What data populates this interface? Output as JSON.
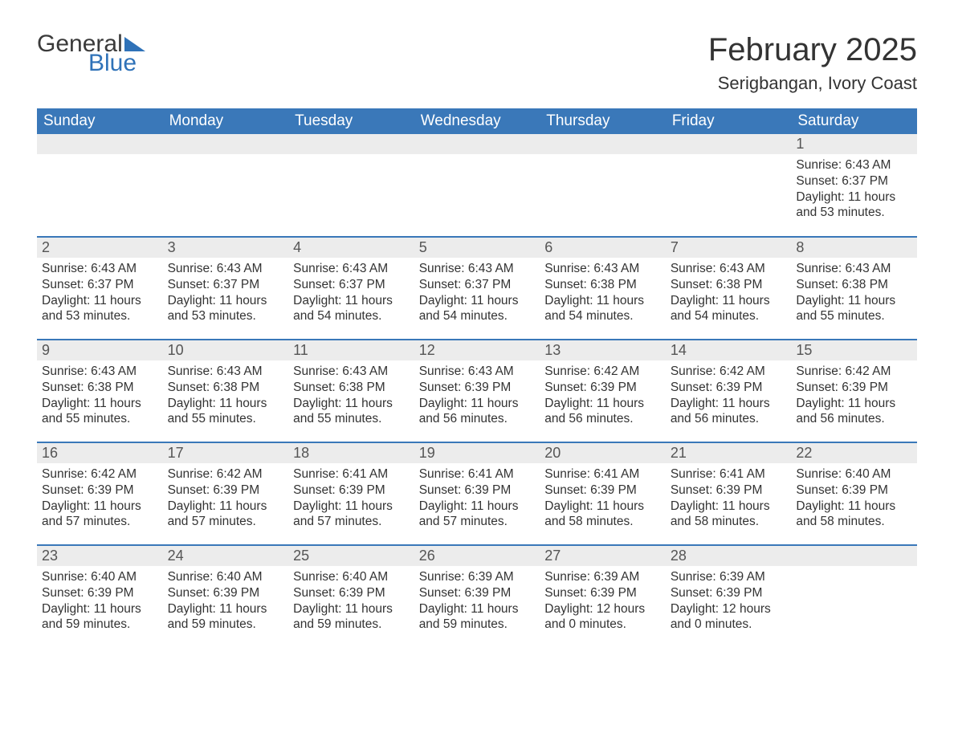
{
  "brand": {
    "general": "General",
    "blue": "Blue"
  },
  "title": "February 2025",
  "location": "Serigbangan, Ivory Coast",
  "colors": {
    "header_bg": "#3a78b9",
    "header_text": "#ffffff",
    "daynum_bg": "#ececec",
    "row_border": "#3a78b9",
    "brand_blue": "#2f72b8",
    "text": "#333333",
    "background": "#ffffff"
  },
  "layout": {
    "start_weekday": 0,
    "first_day_column": 6,
    "num_days": 28,
    "columns": 7
  },
  "weekdays": [
    "Sunday",
    "Monday",
    "Tuesday",
    "Wednesday",
    "Thursday",
    "Friday",
    "Saturday"
  ],
  "days": [
    {
      "n": 1,
      "sunrise": "6:43 AM",
      "sunset": "6:37 PM",
      "daylight": "11 hours and 53 minutes."
    },
    {
      "n": 2,
      "sunrise": "6:43 AM",
      "sunset": "6:37 PM",
      "daylight": "11 hours and 53 minutes."
    },
    {
      "n": 3,
      "sunrise": "6:43 AM",
      "sunset": "6:37 PM",
      "daylight": "11 hours and 53 minutes."
    },
    {
      "n": 4,
      "sunrise": "6:43 AM",
      "sunset": "6:37 PM",
      "daylight": "11 hours and 54 minutes."
    },
    {
      "n": 5,
      "sunrise": "6:43 AM",
      "sunset": "6:37 PM",
      "daylight": "11 hours and 54 minutes."
    },
    {
      "n": 6,
      "sunrise": "6:43 AM",
      "sunset": "6:38 PM",
      "daylight": "11 hours and 54 minutes."
    },
    {
      "n": 7,
      "sunrise": "6:43 AM",
      "sunset": "6:38 PM",
      "daylight": "11 hours and 54 minutes."
    },
    {
      "n": 8,
      "sunrise": "6:43 AM",
      "sunset": "6:38 PM",
      "daylight": "11 hours and 55 minutes."
    },
    {
      "n": 9,
      "sunrise": "6:43 AM",
      "sunset": "6:38 PM",
      "daylight": "11 hours and 55 minutes."
    },
    {
      "n": 10,
      "sunrise": "6:43 AM",
      "sunset": "6:38 PM",
      "daylight": "11 hours and 55 minutes."
    },
    {
      "n": 11,
      "sunrise": "6:43 AM",
      "sunset": "6:38 PM",
      "daylight": "11 hours and 55 minutes."
    },
    {
      "n": 12,
      "sunrise": "6:43 AM",
      "sunset": "6:39 PM",
      "daylight": "11 hours and 56 minutes."
    },
    {
      "n": 13,
      "sunrise": "6:42 AM",
      "sunset": "6:39 PM",
      "daylight": "11 hours and 56 minutes."
    },
    {
      "n": 14,
      "sunrise": "6:42 AM",
      "sunset": "6:39 PM",
      "daylight": "11 hours and 56 minutes."
    },
    {
      "n": 15,
      "sunrise": "6:42 AM",
      "sunset": "6:39 PM",
      "daylight": "11 hours and 56 minutes."
    },
    {
      "n": 16,
      "sunrise": "6:42 AM",
      "sunset": "6:39 PM",
      "daylight": "11 hours and 57 minutes."
    },
    {
      "n": 17,
      "sunrise": "6:42 AM",
      "sunset": "6:39 PM",
      "daylight": "11 hours and 57 minutes."
    },
    {
      "n": 18,
      "sunrise": "6:41 AM",
      "sunset": "6:39 PM",
      "daylight": "11 hours and 57 minutes."
    },
    {
      "n": 19,
      "sunrise": "6:41 AM",
      "sunset": "6:39 PM",
      "daylight": "11 hours and 57 minutes."
    },
    {
      "n": 20,
      "sunrise": "6:41 AM",
      "sunset": "6:39 PM",
      "daylight": "11 hours and 58 minutes."
    },
    {
      "n": 21,
      "sunrise": "6:41 AM",
      "sunset": "6:39 PM",
      "daylight": "11 hours and 58 minutes."
    },
    {
      "n": 22,
      "sunrise": "6:40 AM",
      "sunset": "6:39 PM",
      "daylight": "11 hours and 58 minutes."
    },
    {
      "n": 23,
      "sunrise": "6:40 AM",
      "sunset": "6:39 PM",
      "daylight": "11 hours and 59 minutes."
    },
    {
      "n": 24,
      "sunrise": "6:40 AM",
      "sunset": "6:39 PM",
      "daylight": "11 hours and 59 minutes."
    },
    {
      "n": 25,
      "sunrise": "6:40 AM",
      "sunset": "6:39 PM",
      "daylight": "11 hours and 59 minutes."
    },
    {
      "n": 26,
      "sunrise": "6:39 AM",
      "sunset": "6:39 PM",
      "daylight": "11 hours and 59 minutes."
    },
    {
      "n": 27,
      "sunrise": "6:39 AM",
      "sunset": "6:39 PM",
      "daylight": "12 hours and 0 minutes."
    },
    {
      "n": 28,
      "sunrise": "6:39 AM",
      "sunset": "6:39 PM",
      "daylight": "12 hours and 0 minutes."
    }
  ],
  "labels": {
    "sunrise_prefix": "Sunrise: ",
    "sunset_prefix": "Sunset: ",
    "daylight_prefix": "Daylight: "
  }
}
